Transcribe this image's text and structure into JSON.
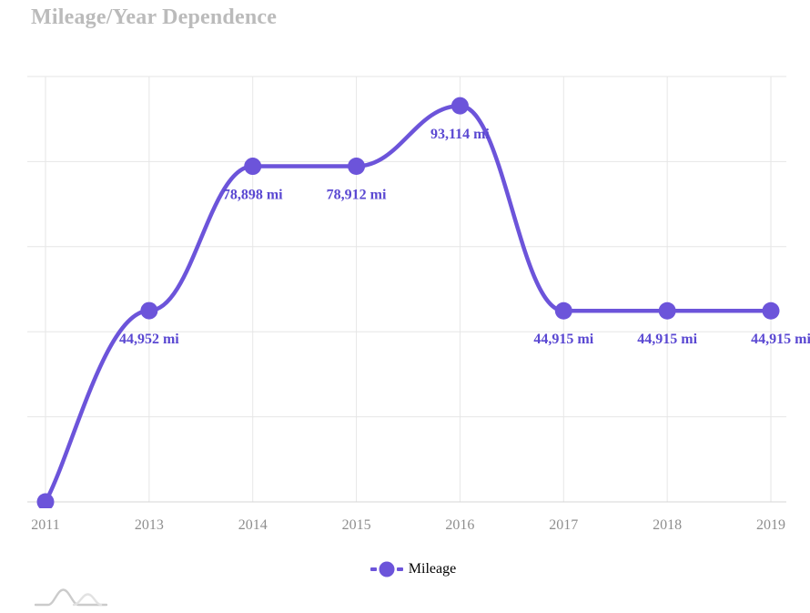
{
  "title": "Mileage/Year Dependence",
  "chart_data": {
    "type": "line",
    "title": "Mileage/Year Dependence",
    "categories": [
      "2011",
      "2013",
      "2014",
      "2015",
      "2016",
      "2017",
      "2018",
      "2019"
    ],
    "series": [
      {
        "name": "Mileage",
        "values": [
          0,
          44952,
          78898,
          78912,
          93114,
          44915,
          44915,
          44915
        ],
        "point_labels": [
          null,
          "44,952 mi",
          "78,898 mi",
          "78,912 mi",
          "93,114 mi",
          "44,915 mi",
          "44,915 mi",
          "44,915 mi"
        ]
      }
    ],
    "xlabel": "",
    "ylabel": "",
    "ylim": [
      0,
      100000
    ],
    "y_grid_step": 20000,
    "y_tick_labels_shown": false,
    "grid": true,
    "line_style": "smoothed",
    "markers": "circle",
    "legend_position": "bottom"
  },
  "legend": {
    "items": [
      {
        "label": "Mileage"
      }
    ]
  },
  "watermark": {
    "icon": "amcharts-logo"
  },
  "colors": {
    "series": "#6C54DA",
    "point_label": "#5A48D2",
    "title": "#BBBBBB",
    "axis_label": "#8E8E8E",
    "gridline": "#E6E6E6",
    "axis_line": "#D5D5D5",
    "legend_text": "#000000",
    "background": "#FFFFFF",
    "watermark_dark": "#CBCBCB",
    "watermark_light": "#E2E2E2"
  }
}
